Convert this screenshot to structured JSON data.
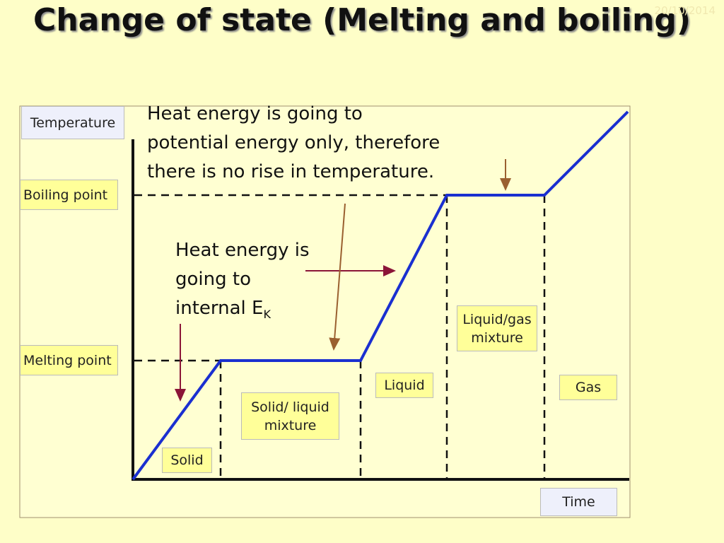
{
  "header": {
    "title": "Change of state (Melting and boiling)",
    "date": "20/10/2014"
  },
  "axes": {
    "y_label": "Temperature",
    "x_label": "Time"
  },
  "levels": {
    "boiling": "Boiling point",
    "melting": "Melting point"
  },
  "phases": [
    {
      "lines": [
        "Solid"
      ]
    },
    {
      "lines": [
        "Solid/ liquid",
        "mixture"
      ]
    },
    {
      "lines": [
        "Liquid"
      ]
    },
    {
      "lines": [
        "Liquid/gas",
        "mixture"
      ]
    },
    {
      "lines": [
        "Gas"
      ]
    }
  ],
  "annotations": [
    {
      "lines": [
        "Heat energy is going to",
        "potential energy only, therefore",
        "there is no rise in temperature."
      ]
    },
    {
      "lines": [
        "Heat energy is",
        "going to",
        "internal E"
      ],
      "subscript": "K"
    }
  ]
}
